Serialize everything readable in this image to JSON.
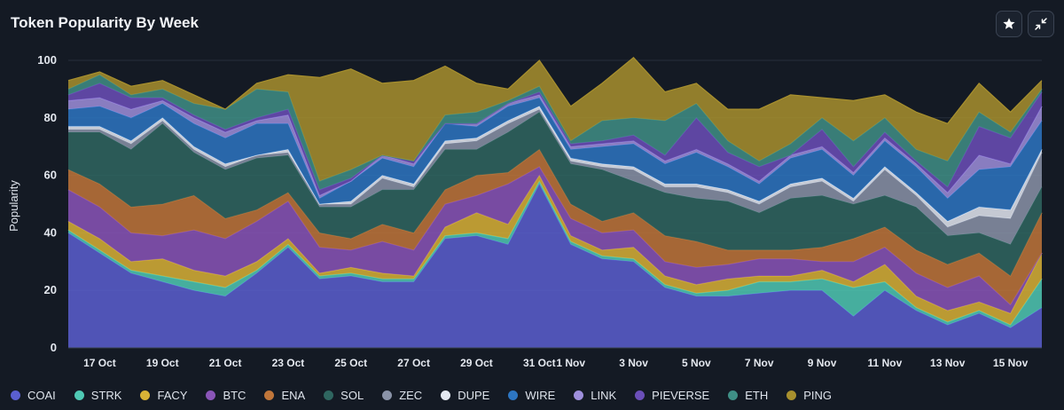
{
  "header": {
    "title": "Token Popularity By Week",
    "star_icon": "star-icon",
    "collapse_icon": "collapse-icon"
  },
  "chart_data": {
    "type": "area",
    "stacked": true,
    "title": "Token Popularity By Week",
    "xlabel": "",
    "ylabel": "Popularity",
    "ylim": [
      0,
      100
    ],
    "yticks": [
      0,
      20,
      40,
      60,
      80,
      100
    ],
    "grid": true,
    "legend_position": "bottom",
    "x": [
      "16 Oct",
      "17 Oct",
      "18 Oct",
      "19 Oct",
      "20 Oct",
      "21 Oct",
      "22 Oct",
      "23 Oct",
      "24 Oct",
      "25 Oct",
      "26 Oct",
      "27 Oct",
      "28 Oct",
      "29 Oct",
      "30 Oct",
      "31 Oct",
      "1 Nov",
      "2 Nov",
      "3 Nov",
      "4 Nov",
      "5 Nov",
      "6 Nov",
      "7 Nov",
      "8 Nov",
      "9 Nov",
      "10 Nov",
      "11 Nov",
      "12 Nov",
      "13 Nov",
      "14 Nov",
      "15 Nov",
      "16 Nov"
    ],
    "xtick_labels": [
      "17 Oct",
      "19 Oct",
      "21 Oct",
      "23 Oct",
      "25 Oct",
      "27 Oct",
      "29 Oct",
      "31 Oct",
      "1 Nov",
      "3 Nov",
      "5 Nov",
      "7 Nov",
      "9 Nov",
      "11 Nov",
      "13 Nov",
      "15 Nov"
    ],
    "series": [
      {
        "name": "COAI",
        "color": "#5a5fd0",
        "values": [
          40,
          33,
          26,
          23,
          20,
          18,
          26,
          35,
          24,
          25,
          23,
          23,
          38,
          39,
          36,
          57,
          36,
          31,
          30,
          21,
          18,
          18,
          19,
          20,
          20,
          11,
          20,
          13,
          8,
          12,
          7,
          14
        ]
      },
      {
        "name": "STRK",
        "color": "#4fc9b4",
        "values": [
          1,
          1,
          1,
          2,
          3,
          3,
          1,
          1,
          1,
          1,
          1,
          1,
          1,
          1,
          2,
          1,
          1,
          1,
          1,
          1,
          1,
          2,
          4,
          3,
          4,
          10,
          3,
          1,
          1,
          1,
          1,
          10
        ]
      },
      {
        "name": "FACY",
        "color": "#d8b236",
        "values": [
          3,
          4,
          3,
          6,
          4,
          4,
          3,
          2,
          1,
          2,
          2,
          1,
          3,
          7,
          5,
          2,
          2,
          2,
          4,
          3,
          3,
          4,
          2,
          2,
          3,
          2,
          6,
          4,
          4,
          3,
          4,
          9
        ]
      },
      {
        "name": "BTC",
        "color": "#8a55b8",
        "values": [
          11,
          11,
          10,
          8,
          14,
          13,
          14,
          13,
          9,
          6,
          11,
          9,
          8,
          6,
          14,
          3,
          6,
          6,
          6,
          5,
          6,
          5,
          6,
          6,
          3,
          7,
          6,
          8,
          8,
          9,
          3,
          0
        ]
      },
      {
        "name": "ENA",
        "color": "#c0763a",
        "values": [
          7,
          8,
          9,
          11,
          12,
          7,
          4,
          3,
          5,
          4,
          6,
          6,
          5,
          7,
          4,
          6,
          5,
          4,
          6,
          9,
          9,
          5,
          3,
          3,
          5,
          8,
          7,
          8,
          8,
          8,
          10,
          14
        ]
      },
      {
        "name": "SOL",
        "color": "#2f6660",
        "values": [
          13,
          18,
          20,
          28,
          15,
          17,
          18,
          13,
          9,
          11,
          12,
          15,
          14,
          9,
          14,
          13,
          14,
          18,
          11,
          15,
          15,
          17,
          13,
          18,
          18,
          12,
          11,
          15,
          10,
          7,
          11,
          9
        ]
      },
      {
        "name": "ZEC",
        "color": "#8a93a8",
        "values": [
          1,
          1,
          2,
          1,
          1,
          1,
          1,
          1,
          1,
          1,
          4,
          1,
          2,
          3,
          3,
          1,
          1,
          1,
          4,
          2,
          4,
          3,
          3,
          4,
          5,
          1,
          9,
          4,
          3,
          6,
          9,
          12
        ]
      },
      {
        "name": "DUPE",
        "color": "#e4e9f2",
        "values": [
          1,
          1,
          1,
          1,
          1,
          1,
          0,
          1,
          0,
          1,
          1,
          1,
          1,
          1,
          1,
          1,
          1,
          1,
          1,
          1,
          1,
          1,
          1,
          1,
          1,
          1,
          1,
          1,
          2,
          3,
          3,
          1
        ]
      },
      {
        "name": "WIRE",
        "color": "#2d76c2",
        "values": [
          6,
          7,
          8,
          5,
          8,
          9,
          11,
          9,
          2,
          7,
          6,
          6,
          6,
          4,
          5,
          3,
          3,
          6,
          8,
          7,
          11,
          8,
          6,
          9,
          10,
          8,
          9,
          9,
          8,
          13,
          15,
          10
        ]
      },
      {
        "name": "LINK",
        "color": "#9e8fdc",
        "values": [
          3,
          3,
          3,
          1,
          2,
          2,
          1,
          3,
          1,
          0,
          1,
          1,
          0,
          1,
          1,
          1,
          1,
          1,
          1,
          1,
          1,
          1,
          1,
          1,
          1,
          1,
          1,
          1,
          2,
          5,
          1,
          5
        ]
      },
      {
        "name": "PIEVERSE",
        "color": "#6b4fb9",
        "values": [
          2,
          5,
          4,
          1,
          1,
          1,
          1,
          2,
          2,
          1,
          0,
          1,
          0,
          0,
          0,
          1,
          1,
          1,
          2,
          2,
          11,
          4,
          5,
          0,
          6,
          2,
          2,
          1,
          2,
          10,
          9,
          5
        ]
      },
      {
        "name": "ETH",
        "color": "#3f8f86",
        "values": [
          2,
          3,
          1,
          3,
          4,
          7,
          10,
          6,
          3,
          3,
          0,
          0,
          3,
          4,
          1,
          2,
          1,
          7,
          6,
          12,
          5,
          4,
          2,
          4,
          4,
          9,
          5,
          4,
          9,
          5,
          2,
          1
        ]
      },
      {
        "name": "PING",
        "color": "#a8902e",
        "values": [
          3,
          1,
          3,
          3,
          3,
          0,
          2,
          6,
          36,
          35,
          25,
          28,
          17,
          10,
          4,
          9,
          12,
          13,
          21,
          10,
          7,
          11,
          18,
          17,
          7,
          14,
          8,
          13,
          13,
          10,
          7,
          3
        ]
      }
    ]
  }
}
